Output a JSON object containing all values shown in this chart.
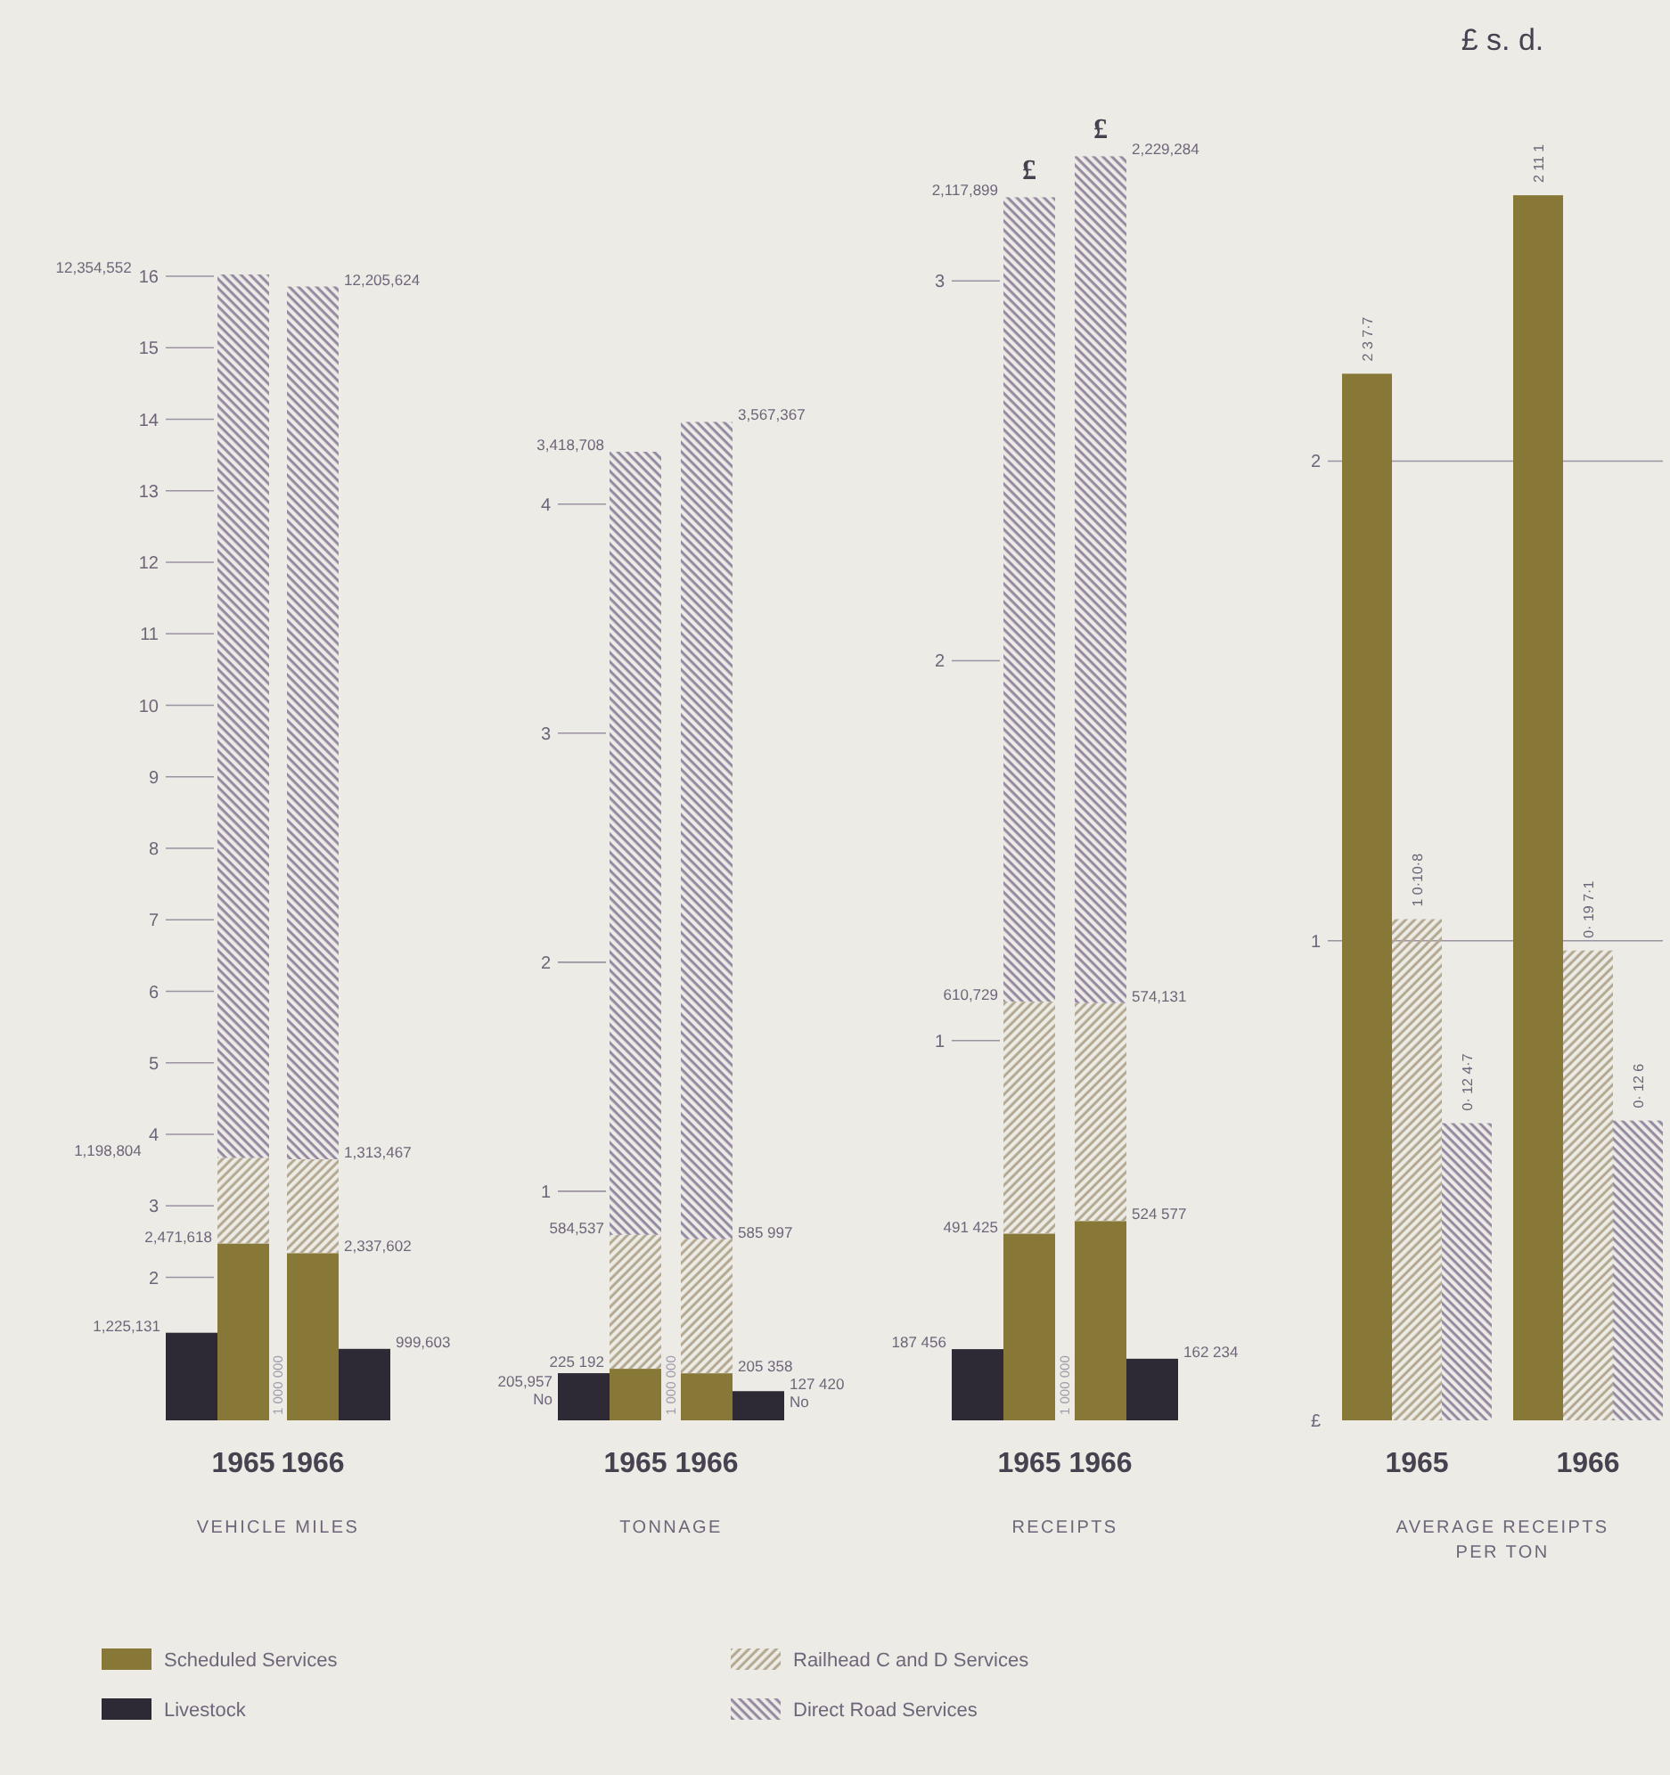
{
  "chart_data": [
    {
      "type": "bar",
      "title": "VEHICLE MILES",
      "ylabel": "1 000 000",
      "categories": [
        null,
        "1965",
        "1966",
        null
      ],
      "stacked": true,
      "ylim": [
        0,
        16.1
      ],
      "yticks": [
        2,
        3,
        4,
        5,
        6,
        7,
        8,
        9,
        10,
        11,
        12,
        13,
        14,
        15,
        16
      ],
      "legend": "bottom",
      "annotations": [
        "2,471,618",
        "2,337,602",
        "1,225,131",
        "999,603",
        "1,198,804",
        "1,313,467",
        "12,354,552",
        "12,205,624"
      ],
      "series": [
        {
          "name": "Scheduled Services",
          "color": "#877838",
          "values": [
            null,
            2.471618,
            2.337602,
            null
          ]
        },
        {
          "name": "Livestock",
          "color": "#2d2a36",
          "values": [
            1.225131,
            null,
            null,
            0.999603
          ]
        },
        {
          "name": "Railhead C and D Services",
          "color": "#b3a88f",
          "values": [
            null,
            1.198804,
            1.313467,
            null
          ]
        },
        {
          "name": "Direct Road Services",
          "color": "#9487a0",
          "values": [
            null,
            12.354552,
            12.205624,
            null
          ]
        }
      ]
    },
    {
      "type": "bar",
      "title": "TONNAGE",
      "ylabel": "1 000 000",
      "categories": [
        null,
        "1965",
        "1966",
        null
      ],
      "stacked": true,
      "ylim": [
        0,
        4.38
      ],
      "yticks": [
        1,
        2,
        3,
        4
      ],
      "annotations": [
        "225 192",
        "205 358",
        "205,957\nNo",
        "127 420\nNo",
        "584,537",
        "585 997",
        "3,418,708",
        "3,567,367"
      ],
      "series": [
        {
          "color": "#877838",
          "values": [
            null,
            0.225192,
            0.205358,
            null
          ]
        },
        {
          "color": "#2d2a36",
          "values": [
            0.205957,
            null,
            null,
            0.12742
          ]
        },
        {
          "color": "#b3a88f",
          "values": [
            null,
            0.584537,
            0.585997,
            null
          ]
        },
        {
          "color": "#9487a0",
          "values": [
            null,
            3.418708,
            3.567367,
            null
          ]
        }
      ]
    },
    {
      "type": "bar",
      "title": "RECEIPTS",
      "ylabel": "1 000 000",
      "categories": [
        null,
        "1965",
        "1966",
        null
      ],
      "stacked": true,
      "ylim": [
        0,
        3.35
      ],
      "yticks": [
        1,
        2,
        3
      ],
      "annotations": [
        "491 425",
        "524 577",
        "187 456",
        "162 234",
        "610,729",
        "574,131",
        "2,117,899",
        "2,229,284",
        "£",
        "£"
      ],
      "series": [
        {
          "color": "#877838",
          "values": [
            null,
            0.491425,
            0.524577,
            null
          ]
        },
        {
          "color": "#2d2a36",
          "values": [
            0.187456,
            null,
            null,
            0.162234
          ]
        },
        {
          "color": "#b3a88f",
          "values": [
            null,
            0.610729,
            0.574131,
            null
          ]
        },
        {
          "color": "#9487a0",
          "values": [
            null,
            2.117899,
            2.229284,
            null
          ]
        }
      ]
    },
    {
      "type": "bar",
      "title": "AVERAGE RECEIPTS PER TON",
      "ylabel": "£ s. d.",
      "categories": [
        "1965",
        "1966"
      ],
      "ylim": [
        0,
        2.56
      ],
      "yticks": [
        {
          "value": 0,
          "label": "£"
        },
        1,
        2
      ],
      "grid": "y",
      "annotations": [
        "2 3 7·7",
        "2 11 1",
        "1 0·10·8",
        "0· 19 7·1",
        "0· 12 4·7",
        "0· 12 6"
      ],
      "series": [
        {
          "color": "#877838",
          "values": [
            2.1821,
            2.5542
          ]
        },
        {
          "color": "#b3a88f",
          "values": [
            1.045,
            0.9796
          ]
        },
        {
          "color": "#9487a0",
          "values": [
            0.6196,
            0.625
          ]
        }
      ]
    }
  ]
}
